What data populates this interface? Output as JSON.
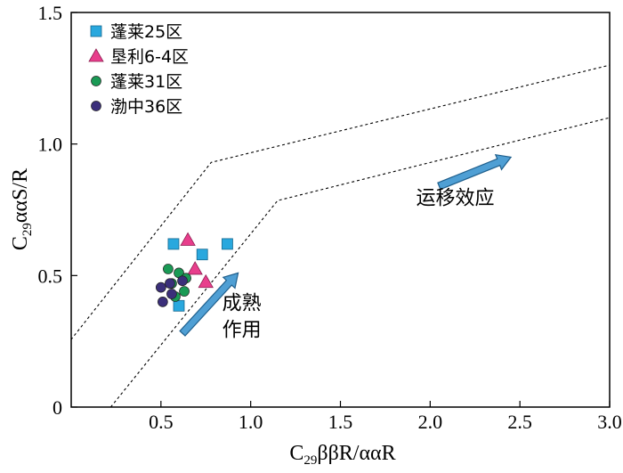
{
  "chart_data": {
    "type": "scatter",
    "xlabel": {
      "main": "C",
      "sub": "29",
      "rest": "ββR/ααR"
    },
    "ylabel": {
      "main": "C",
      "sub": "29",
      "rest": "ααS/R"
    },
    "xlim": [
      0,
      3.0
    ],
    "ylim": [
      0,
      1.5
    ],
    "xticks": [
      0.5,
      1.0,
      1.5,
      2.0,
      2.5,
      3.0
    ],
    "xtick_labels": [
      "0.5",
      "1.0",
      "1.5",
      "2.0",
      "2.5",
      "3.0"
    ],
    "yticks": [
      0,
      0.5,
      1.0,
      1.5
    ],
    "ytick_labels": [
      "0",
      "0.5",
      "1.0",
      "1.5"
    ],
    "legend_position": "top-left",
    "series": [
      {
        "name": "蓬莱25区",
        "marker": "square",
        "color": "#29a8de",
        "points": [
          [
            0.57,
            0.62
          ],
          [
            0.73,
            0.58
          ],
          [
            0.87,
            0.62
          ],
          [
            0.6,
            0.385
          ]
        ]
      },
      {
        "name": "垦利6-4区",
        "marker": "triangle",
        "color": "#e83e8c",
        "points": [
          [
            0.65,
            0.635
          ],
          [
            0.69,
            0.525
          ],
          [
            0.75,
            0.475
          ]
        ]
      },
      {
        "name": "蓬莱31区",
        "marker": "circle",
        "color": "#1a9a55",
        "points": [
          [
            0.54,
            0.525
          ],
          [
            0.6,
            0.51
          ],
          [
            0.64,
            0.49
          ],
          [
            0.56,
            0.47
          ],
          [
            0.63,
            0.44
          ],
          [
            0.58,
            0.42
          ]
        ]
      },
      {
        "name": "渤中36区",
        "marker": "circle",
        "color": "#3b2f7a",
        "points": [
          [
            0.5,
            0.455
          ],
          [
            0.55,
            0.47
          ],
          [
            0.62,
            0.48
          ],
          [
            0.56,
            0.43
          ],
          [
            0.51,
            0.4
          ]
        ]
      }
    ],
    "boundary_lines": [
      [
        [
          -0.02,
          0.24
        ],
        [
          0.78,
          0.93
        ],
        [
          3.0,
          1.3
        ]
      ],
      [
        [
          0.22,
          0.0
        ],
        [
          1.15,
          0.785
        ],
        [
          3.0,
          1.1
        ]
      ]
    ],
    "annotations": [
      {
        "text": "运移效应",
        "lines": [
          "运移效应"
        ],
        "anchor": [
          2.14,
          0.77
        ],
        "arrow": {
          "from": [
            2.05,
            0.84
          ],
          "to": [
            2.45,
            0.95
          ]
        }
      },
      {
        "text": "成熟作用",
        "lines": [
          "成熟",
          "作用"
        ],
        "anchor": [
          0.95,
          0.37
        ],
        "arrow": {
          "from": [
            0.62,
            0.28
          ],
          "to": [
            0.93,
            0.51
          ]
        }
      }
    ]
  }
}
